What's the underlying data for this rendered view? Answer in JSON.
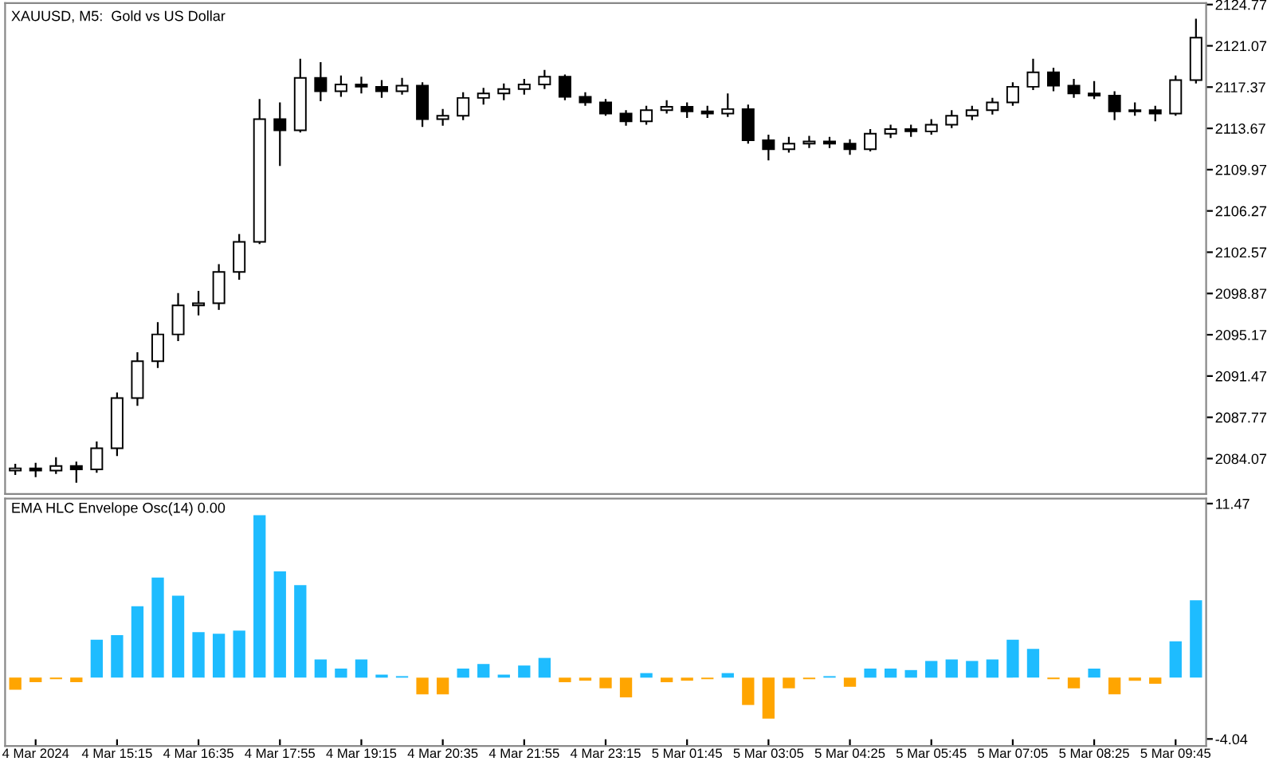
{
  "chart_data": [
    {
      "type": "candlestick",
      "title": "XAUUSD, M5:  Gold vs US Dollar",
      "categories": [
        null,
        null,
        null,
        null,
        null,
        null,
        null,
        null,
        null,
        null,
        null,
        null,
        null,
        null,
        null,
        null,
        null,
        null,
        null,
        null,
        null,
        null,
        null,
        null,
        null,
        null,
        null,
        null,
        null,
        null,
        null,
        null,
        null,
        null,
        null,
        null,
        null,
        null,
        null,
        null,
        null,
        null,
        null,
        null,
        null,
        null,
        null,
        null,
        null,
        null,
        null,
        null,
        null,
        null,
        null,
        null,
        null,
        null,
        null
      ],
      "ohlc": [
        [
          2083.0,
          2083.6,
          2082.6,
          2083.2
        ],
        [
          2083.2,
          2083.7,
          2082.4,
          2083.0
        ],
        [
          2083.0,
          2084.2,
          2082.7,
          2083.4
        ],
        [
          2083.4,
          2083.8,
          2081.9,
          2083.1
        ],
        [
          2083.1,
          2085.6,
          2082.8,
          2085.0
        ],
        [
          2085.0,
          2090.0,
          2084.3,
          2089.5
        ],
        [
          2089.5,
          2093.6,
          2088.8,
          2092.8
        ],
        [
          2092.8,
          2096.3,
          2092.2,
          2095.2
        ],
        [
          2095.2,
          2098.9,
          2094.6,
          2097.8
        ],
        [
          2097.8,
          2099.1,
          2096.9,
          2098.0
        ],
        [
          2098.0,
          2101.5,
          2097.4,
          2100.8
        ],
        [
          2100.8,
          2104.2,
          2100.1,
          2103.5
        ],
        [
          2103.5,
          2116.3,
          2103.3,
          2114.5
        ],
        [
          2114.5,
          2116.0,
          2110.3,
          2113.5
        ],
        [
          2113.5,
          2119.9,
          2113.3,
          2118.2
        ],
        [
          2118.2,
          2119.6,
          2116.1,
          2117.0
        ],
        [
          2117.0,
          2118.4,
          2116.5,
          2117.6
        ],
        [
          2117.6,
          2118.3,
          2116.8,
          2117.4
        ],
        [
          2117.4,
          2118.0,
          2116.4,
          2117.0
        ],
        [
          2117.0,
          2118.2,
          2116.7,
          2117.5
        ],
        [
          2117.5,
          2117.8,
          2113.8,
          2114.5
        ],
        [
          2114.5,
          2115.4,
          2113.9,
          2114.8
        ],
        [
          2114.8,
          2116.9,
          2114.4,
          2116.4
        ],
        [
          2116.4,
          2117.3,
          2115.8,
          2116.8
        ],
        [
          2116.8,
          2117.7,
          2116.2,
          2117.2
        ],
        [
          2117.2,
          2118.1,
          2116.7,
          2117.6
        ],
        [
          2117.6,
          2118.9,
          2117.2,
          2118.3
        ],
        [
          2118.3,
          2118.5,
          2116.2,
          2116.5
        ],
        [
          2116.5,
          2116.9,
          2115.7,
          2116.0
        ],
        [
          2116.0,
          2116.3,
          2114.8,
          2115.0
        ],
        [
          2115.0,
          2115.3,
          2113.9,
          2114.3
        ],
        [
          2114.3,
          2115.7,
          2114.0,
          2115.3
        ],
        [
          2115.3,
          2116.2,
          2115.0,
          2115.6
        ],
        [
          2115.6,
          2116.0,
          2114.6,
          2115.2
        ],
        [
          2115.2,
          2115.7,
          2114.6,
          2115.0
        ],
        [
          2115.0,
          2116.8,
          2114.7,
          2115.4
        ],
        [
          2115.4,
          2115.8,
          2112.3,
          2112.6
        ],
        [
          2112.6,
          2113.1,
          2110.8,
          2111.8
        ],
        [
          2111.8,
          2112.9,
          2111.5,
          2112.3
        ],
        [
          2112.3,
          2113.0,
          2111.9,
          2112.5
        ],
        [
          2112.5,
          2112.9,
          2111.9,
          2112.3
        ],
        [
          2112.3,
          2112.7,
          2111.3,
          2111.8
        ],
        [
          2111.8,
          2113.6,
          2111.6,
          2113.2
        ],
        [
          2113.2,
          2114.0,
          2112.8,
          2113.6
        ],
        [
          2113.6,
          2114.0,
          2112.9,
          2113.4
        ],
        [
          2113.4,
          2114.5,
          2113.1,
          2114.0
        ],
        [
          2114.0,
          2115.3,
          2113.7,
          2114.8
        ],
        [
          2114.8,
          2115.7,
          2114.4,
          2115.3
        ],
        [
          2115.3,
          2116.4,
          2114.9,
          2116.0
        ],
        [
          2116.0,
          2117.8,
          2115.7,
          2117.4
        ],
        [
          2117.4,
          2119.9,
          2117.1,
          2118.7
        ],
        [
          2118.7,
          2119.1,
          2117.0,
          2117.5
        ],
        [
          2117.5,
          2118.1,
          2116.4,
          2116.8
        ],
        [
          2116.8,
          2117.9,
          2116.3,
          2116.6
        ],
        [
          2116.6,
          2117.0,
          2114.4,
          2115.2
        ],
        [
          2115.2,
          2116.0,
          2114.8,
          2115.3
        ],
        [
          2115.3,
          2115.7,
          2114.3,
          2115.0
        ],
        [
          2115.0,
          2118.4,
          2114.8,
          2118.0
        ],
        [
          2118.0,
          2123.5,
          2117.7,
          2121.8
        ]
      ],
      "ylim": [
        2080.9,
        2124.9
      ],
      "yticks": [
        2084.07,
        2087.77,
        2091.47,
        2095.17,
        2098.87,
        2102.57,
        2106.27,
        2109.97,
        2113.67,
        2117.37,
        2121.07,
        2124.77
      ],
      "tick_labels": "y",
      "grid": false,
      "legend": false
    },
    {
      "type": "bar",
      "title": "EMA HLC Envelope Osc(14) 0.00",
      "categories": [
        null,
        "4 Mar 2024",
        null,
        null,
        null,
        "4 Mar 15:15",
        null,
        null,
        null,
        "4 Mar 16:35",
        null,
        null,
        null,
        "4 Mar 17:55",
        null,
        null,
        null,
        "4 Mar 19:15",
        null,
        null,
        null,
        "4 Mar 20:35",
        null,
        null,
        null,
        "4 Mar 21:55",
        null,
        null,
        null,
        "4 Mar 23:15",
        null,
        null,
        null,
        "5 Mar 01:45",
        null,
        null,
        null,
        "5 Mar 03:05",
        null,
        null,
        null,
        "5 Mar 04:25",
        null,
        null,
        null,
        "5 Mar 05:45",
        null,
        null,
        null,
        "5 Mar 07:05",
        null,
        null,
        null,
        "5 Mar 08:25",
        null,
        null,
        null,
        "5 Mar 09:45",
        null
      ],
      "values": [
        -0.8,
        -0.3,
        -0.1,
        -0.3,
        2.5,
        2.8,
        4.7,
        6.6,
        5.4,
        3.0,
        2.9,
        3.1,
        10.7,
        7.0,
        6.1,
        1.2,
        0.6,
        1.2,
        0.2,
        0.1,
        -1.1,
        -1.1,
        0.6,
        0.9,
        0.2,
        0.8,
        1.3,
        -0.3,
        -0.2,
        -0.7,
        -1.3,
        0.3,
        -0.3,
        -0.2,
        -0.1,
        0.3,
        -1.8,
        -2.7,
        -0.7,
        -0.1,
        0.1,
        -0.6,
        0.6,
        0.6,
        0.5,
        1.1,
        1.2,
        1.1,
        1.2,
        2.5,
        1.9,
        -0.1,
        -0.7,
        0.6,
        -1.1,
        -0.2,
        -0.4,
        2.4,
        5.1
      ],
      "colors": [
        "#ffa500",
        "#ffa500",
        "#ffa500",
        "#ffa500",
        "#1ebcff",
        "#1ebcff",
        "#1ebcff",
        "#1ebcff",
        "#1ebcff",
        "#1ebcff",
        "#1ebcff",
        "#1ebcff",
        "#1ebcff",
        "#1ebcff",
        "#1ebcff",
        "#1ebcff",
        "#1ebcff",
        "#1ebcff",
        "#1ebcff",
        "#1ebcff",
        "#ffa500",
        "#ffa500",
        "#1ebcff",
        "#1ebcff",
        "#1ebcff",
        "#1ebcff",
        "#1ebcff",
        "#ffa500",
        "#ffa500",
        "#ffa500",
        "#ffa500",
        "#1ebcff",
        "#ffa500",
        "#ffa500",
        "#ffa500",
        "#1ebcff",
        "#ffa500",
        "#ffa500",
        "#ffa500",
        "#ffa500",
        "#1ebcff",
        "#ffa500",
        "#1ebcff",
        "#1ebcff",
        "#1ebcff",
        "#1ebcff",
        "#1ebcff",
        "#1ebcff",
        "#1ebcff",
        "#1ebcff",
        "#1ebcff",
        "#ffa500",
        "#ffa500",
        "#1ebcff",
        "#ffa500",
        "#ffa500",
        "#ffa500",
        "#1ebcff",
        "#1ebcff"
      ],
      "ylim": [
        -4.5,
        11.8
      ],
      "yticks": [
        {
          "value": -4.04,
          "label": "-4.04"
        },
        11.47
      ],
      "grid": false,
      "legend": false
    }
  ]
}
